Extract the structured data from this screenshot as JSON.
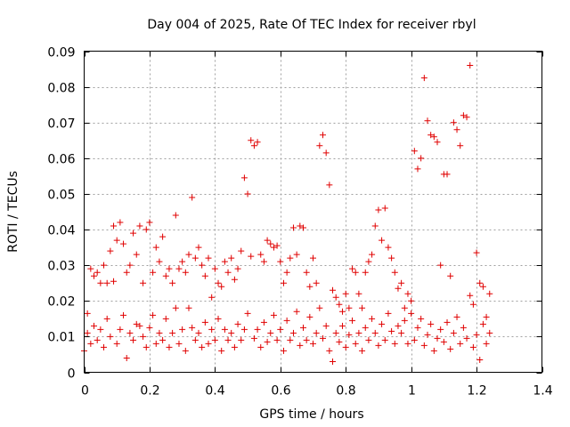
{
  "chart_data": {
    "type": "scatter",
    "title": "Day 004 of 2025, Rate Of TEC Index for receiver rbyl",
    "xlabel": "GPS time / hours",
    "ylabel": "ROTI / TECUs",
    "xlim": [
      0,
      1.4
    ],
    "ylim": [
      0,
      0.09
    ],
    "xticks": [
      0,
      0.2,
      0.4,
      0.6,
      0.8,
      1.0,
      1.2,
      1.4
    ],
    "xtick_labels": [
      "0",
      "0.2",
      "0.4",
      "0.6",
      "0.8",
      "1",
      "1.2",
      "1.4"
    ],
    "yticks": [
      0,
      0.01,
      0.02,
      0.03,
      0.04,
      0.05,
      0.06,
      0.07,
      0.08,
      0.09
    ],
    "ytick_labels": [
      "0",
      "0.01",
      "0.02",
      "0.03",
      "0.04",
      "0.05",
      "0.06",
      "0.07",
      "0.08",
      "0.09"
    ],
    "grid": true,
    "marker": "+",
    "marker_color": "#e00000",
    "series": [
      {
        "name": "ROTI",
        "points": [
          [
            0.0,
            0.006
          ],
          [
            0.01,
            0.0165
          ],
          [
            0.01,
            0.011
          ],
          [
            0.02,
            0.029
          ],
          [
            0.02,
            0.008
          ],
          [
            0.03,
            0.027
          ],
          [
            0.03,
            0.013
          ],
          [
            0.04,
            0.028
          ],
          [
            0.04,
            0.009
          ],
          [
            0.05,
            0.025
          ],
          [
            0.05,
            0.012
          ],
          [
            0.06,
            0.03
          ],
          [
            0.06,
            0.007
          ],
          [
            0.07,
            0.025
          ],
          [
            0.07,
            0.015
          ],
          [
            0.08,
            0.034
          ],
          [
            0.08,
            0.01
          ],
          [
            0.09,
            0.041
          ],
          [
            0.09,
            0.0255
          ],
          [
            0.1,
            0.037
          ],
          [
            0.1,
            0.008
          ],
          [
            0.11,
            0.042
          ],
          [
            0.11,
            0.012
          ],
          [
            0.12,
            0.036
          ],
          [
            0.12,
            0.016
          ],
          [
            0.13,
            0.028
          ],
          [
            0.13,
            0.004
          ],
          [
            0.14,
            0.03
          ],
          [
            0.14,
            0.011
          ],
          [
            0.15,
            0.039
          ],
          [
            0.15,
            0.009
          ],
          [
            0.16,
            0.033
          ],
          [
            0.16,
            0.0135
          ],
          [
            0.17,
            0.041
          ],
          [
            0.17,
            0.013
          ],
          [
            0.18,
            0.025
          ],
          [
            0.18,
            0.01
          ],
          [
            0.19,
            0.04
          ],
          [
            0.19,
            0.007
          ],
          [
            0.2,
            0.042
          ],
          [
            0.2,
            0.0125
          ],
          [
            0.21,
            0.028
          ],
          [
            0.21,
            0.016
          ],
          [
            0.22,
            0.035
          ],
          [
            0.22,
            0.008
          ],
          [
            0.23,
            0.031
          ],
          [
            0.23,
            0.011
          ],
          [
            0.24,
            0.038
          ],
          [
            0.24,
            0.009
          ],
          [
            0.25,
            0.027
          ],
          [
            0.25,
            0.015
          ],
          [
            0.26,
            0.029
          ],
          [
            0.26,
            0.007
          ],
          [
            0.27,
            0.025
          ],
          [
            0.27,
            0.011
          ],
          [
            0.28,
            0.044
          ],
          [
            0.28,
            0.018
          ],
          [
            0.29,
            0.029
          ],
          [
            0.29,
            0.008
          ],
          [
            0.3,
            0.031
          ],
          [
            0.3,
            0.012
          ],
          [
            0.31,
            0.028
          ],
          [
            0.31,
            0.006
          ],
          [
            0.32,
            0.033
          ],
          [
            0.32,
            0.018
          ],
          [
            0.33,
            0.049
          ],
          [
            0.33,
            0.0125
          ],
          [
            0.34,
            0.032
          ],
          [
            0.34,
            0.009
          ],
          [
            0.35,
            0.035
          ],
          [
            0.35,
            0.011
          ],
          [
            0.36,
            0.03
          ],
          [
            0.36,
            0.007
          ],
          [
            0.37,
            0.027
          ],
          [
            0.37,
            0.014
          ],
          [
            0.38,
            0.032
          ],
          [
            0.38,
            0.008
          ],
          [
            0.39,
            0.021
          ],
          [
            0.39,
            0.012
          ],
          [
            0.4,
            0.029
          ],
          [
            0.4,
            0.009
          ],
          [
            0.41,
            0.025
          ],
          [
            0.41,
            0.015
          ],
          [
            0.42,
            0.024
          ],
          [
            0.42,
            0.006
          ],
          [
            0.43,
            0.031
          ],
          [
            0.43,
            0.012
          ],
          [
            0.44,
            0.028
          ],
          [
            0.44,
            0.009
          ],
          [
            0.45,
            0.032
          ],
          [
            0.45,
            0.011
          ],
          [
            0.46,
            0.026
          ],
          [
            0.46,
            0.007
          ],
          [
            0.47,
            0.029
          ],
          [
            0.47,
            0.0135
          ],
          [
            0.48,
            0.034
          ],
          [
            0.48,
            0.009
          ],
          [
            0.49,
            0.0545
          ],
          [
            0.49,
            0.012
          ],
          [
            0.5,
            0.05
          ],
          [
            0.5,
            0.0165
          ],
          [
            0.51,
            0.065
          ],
          [
            0.51,
            0.0325
          ],
          [
            0.52,
            0.0635
          ],
          [
            0.52,
            0.0095
          ],
          [
            0.53,
            0.0645
          ],
          [
            0.53,
            0.012
          ],
          [
            0.54,
            0.033
          ],
          [
            0.54,
            0.007
          ],
          [
            0.55,
            0.031
          ],
          [
            0.55,
            0.014
          ],
          [
            0.56,
            0.037
          ],
          [
            0.56,
            0.0085
          ],
          [
            0.57,
            0.036
          ],
          [
            0.57,
            0.011
          ],
          [
            0.58,
            0.035
          ],
          [
            0.58,
            0.016
          ],
          [
            0.59,
            0.0355
          ],
          [
            0.59,
            0.009
          ],
          [
            0.6,
            0.031
          ],
          [
            0.6,
            0.012
          ],
          [
            0.61,
            0.025
          ],
          [
            0.61,
            0.006
          ],
          [
            0.62,
            0.028
          ],
          [
            0.62,
            0.0145
          ],
          [
            0.63,
            0.032
          ],
          [
            0.63,
            0.009
          ],
          [
            0.64,
            0.0405
          ],
          [
            0.64,
            0.011
          ],
          [
            0.65,
            0.033
          ],
          [
            0.65,
            0.017
          ],
          [
            0.66,
            0.041
          ],
          [
            0.66,
            0.0075
          ],
          [
            0.67,
            0.0405
          ],
          [
            0.67,
            0.0125
          ],
          [
            0.68,
            0.028
          ],
          [
            0.68,
            0.009
          ],
          [
            0.69,
            0.024
          ],
          [
            0.69,
            0.0155
          ],
          [
            0.7,
            0.032
          ],
          [
            0.7,
            0.008
          ],
          [
            0.71,
            0.025
          ],
          [
            0.71,
            0.011
          ],
          [
            0.72,
            0.0635
          ],
          [
            0.72,
            0.018
          ],
          [
            0.73,
            0.0665
          ],
          [
            0.73,
            0.0095
          ],
          [
            0.74,
            0.0615
          ],
          [
            0.74,
            0.013
          ],
          [
            0.75,
            0.0525
          ],
          [
            0.75,
            0.006
          ],
          [
            0.76,
            0.023
          ],
          [
            0.76,
            0.003
          ],
          [
            0.77,
            0.021
          ],
          [
            0.77,
            0.011
          ],
          [
            0.78,
            0.019
          ],
          [
            0.78,
            0.0085
          ],
          [
            0.79,
            0.017
          ],
          [
            0.79,
            0.013
          ],
          [
            0.8,
            0.022
          ],
          [
            0.8,
            0.007
          ],
          [
            0.81,
            0.018
          ],
          [
            0.81,
            0.0105
          ],
          [
            0.82,
            0.029
          ],
          [
            0.82,
            0.0145
          ],
          [
            0.83,
            0.028
          ],
          [
            0.83,
            0.008
          ],
          [
            0.84,
            0.022
          ],
          [
            0.84,
            0.011
          ],
          [
            0.85,
            0.018
          ],
          [
            0.85,
            0.006
          ],
          [
            0.86,
            0.028
          ],
          [
            0.86,
            0.0125
          ],
          [
            0.87,
            0.031
          ],
          [
            0.87,
            0.009
          ],
          [
            0.88,
            0.033
          ],
          [
            0.88,
            0.015
          ],
          [
            0.89,
            0.041
          ],
          [
            0.89,
            0.011
          ],
          [
            0.9,
            0.0455
          ],
          [
            0.9,
            0.0075
          ],
          [
            0.91,
            0.037
          ],
          [
            0.91,
            0.0135
          ],
          [
            0.92,
            0.046
          ],
          [
            0.92,
            0.009
          ],
          [
            0.93,
            0.035
          ],
          [
            0.93,
            0.0165
          ],
          [
            0.94,
            0.032
          ],
          [
            0.94,
            0.0115
          ],
          [
            0.95,
            0.028
          ],
          [
            0.95,
            0.008
          ],
          [
            0.96,
            0.0235
          ],
          [
            0.96,
            0.013
          ],
          [
            0.97,
            0.025
          ],
          [
            0.97,
            0.011
          ],
          [
            0.98,
            0.018
          ],
          [
            0.98,
            0.0145
          ],
          [
            0.99,
            0.022
          ],
          [
            0.99,
            0.008
          ],
          [
            1.0,
            0.02
          ],
          [
            1.0,
            0.0165
          ],
          [
            1.01,
            0.062
          ],
          [
            1.01,
            0.009
          ],
          [
            1.02,
            0.057
          ],
          [
            1.02,
            0.0125
          ],
          [
            1.03,
            0.06
          ],
          [
            1.03,
            0.015
          ],
          [
            1.04,
            0.0825
          ],
          [
            1.04,
            0.0075
          ],
          [
            1.05,
            0.0705
          ],
          [
            1.05,
            0.0105
          ],
          [
            1.06,
            0.0665
          ],
          [
            1.06,
            0.0135
          ],
          [
            1.07,
            0.066
          ],
          [
            1.07,
            0.006
          ],
          [
            1.08,
            0.0645
          ],
          [
            1.08,
            0.0095
          ],
          [
            1.09,
            0.03
          ],
          [
            1.09,
            0.012
          ],
          [
            1.1,
            0.0555
          ],
          [
            1.1,
            0.0085
          ],
          [
            1.11,
            0.0555
          ],
          [
            1.11,
            0.014
          ],
          [
            1.12,
            0.027
          ],
          [
            1.12,
            0.0065
          ],
          [
            1.13,
            0.07
          ],
          [
            1.13,
            0.011
          ],
          [
            1.14,
            0.068
          ],
          [
            1.14,
            0.0155
          ],
          [
            1.15,
            0.0635
          ],
          [
            1.15,
            0.008
          ],
          [
            1.16,
            0.072
          ],
          [
            1.16,
            0.0125
          ],
          [
            1.17,
            0.0715
          ],
          [
            1.17,
            0.0095
          ],
          [
            1.18,
            0.086
          ],
          [
            1.18,
            0.0215
          ],
          [
            1.19,
            0.019
          ],
          [
            1.19,
            0.007
          ],
          [
            1.2,
            0.0335
          ],
          [
            1.2,
            0.0105
          ],
          [
            1.21,
            0.025
          ],
          [
            1.21,
            0.0035
          ],
          [
            1.22,
            0.024
          ],
          [
            1.22,
            0.0135
          ],
          [
            1.23,
            0.0155
          ],
          [
            1.23,
            0.008
          ],
          [
            1.24,
            0.022
          ],
          [
            1.24,
            0.011
          ]
        ]
      }
    ]
  }
}
